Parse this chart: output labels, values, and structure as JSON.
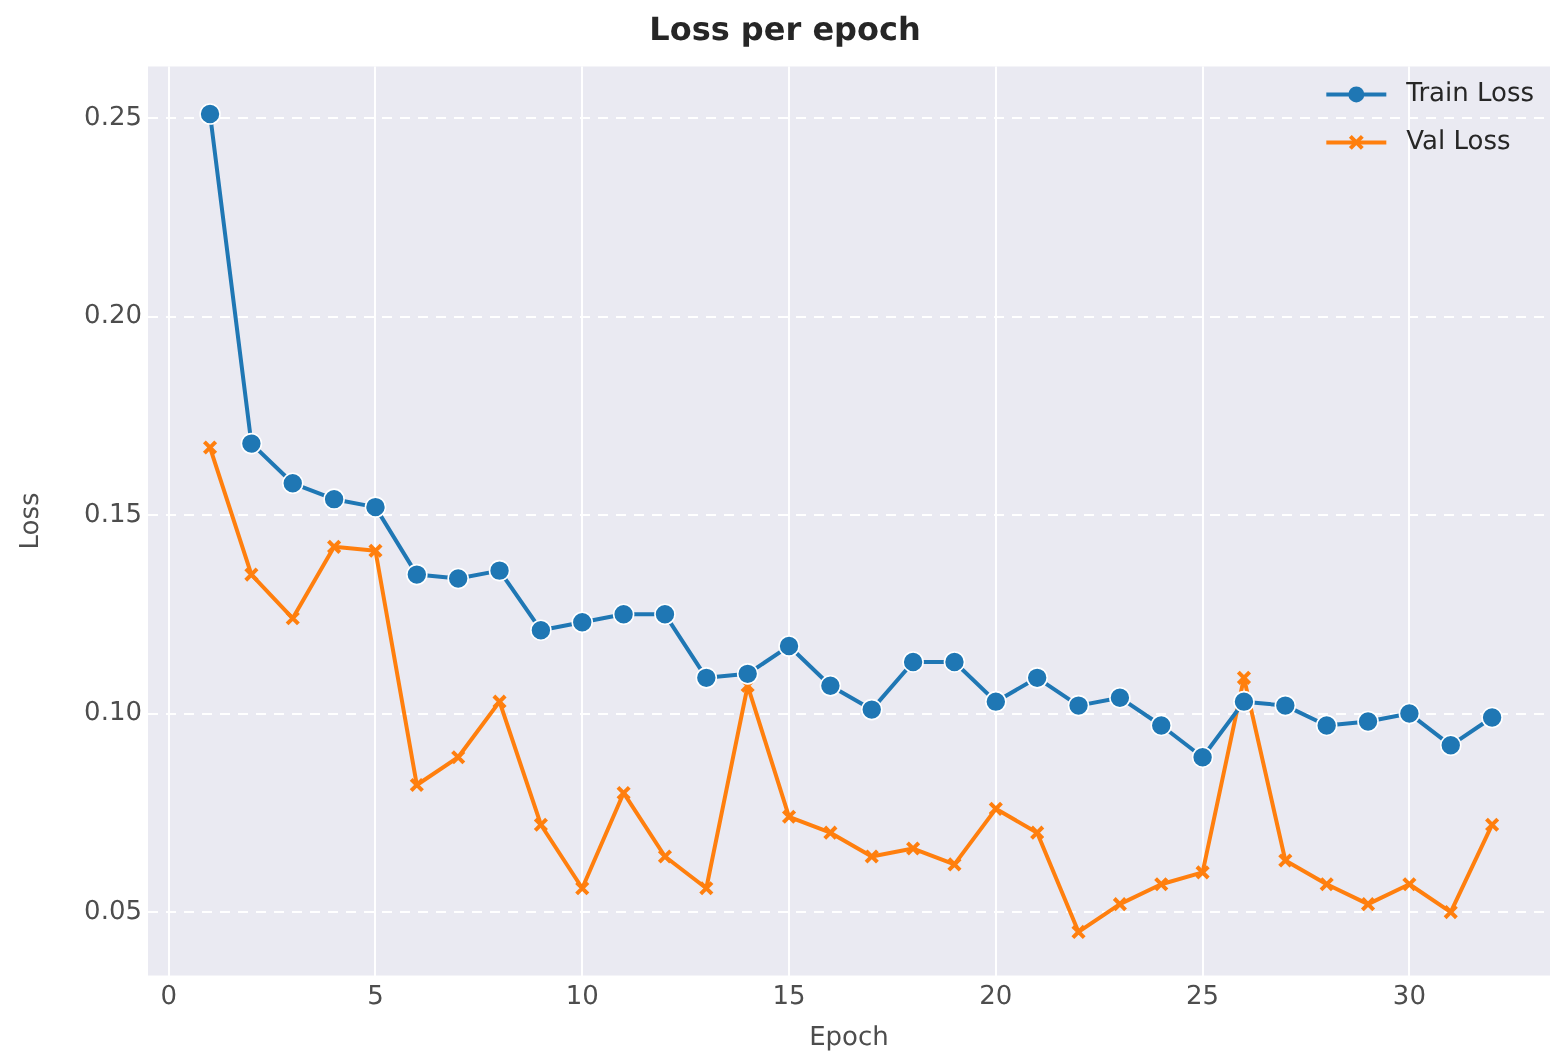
{
  "chart_data": {
    "type": "line",
    "title": "Loss per epoch",
    "xlabel": "Epoch",
    "ylabel": "Loss",
    "x": [
      1,
      2,
      3,
      4,
      5,
      6,
      7,
      8,
      9,
      10,
      11,
      12,
      13,
      14,
      15,
      16,
      17,
      18,
      19,
      20,
      21,
      22,
      23,
      24,
      25,
      26,
      27,
      28,
      29,
      30,
      31,
      32
    ],
    "series": [
      {
        "name": "Train Loss",
        "color": "#1f77b4",
        "marker": "circle",
        "values": [
          0.251,
          0.168,
          0.158,
          0.154,
          0.152,
          0.135,
          0.134,
          0.136,
          0.121,
          0.123,
          0.125,
          0.125,
          0.109,
          0.11,
          0.117,
          0.107,
          0.101,
          0.113,
          0.113,
          0.103,
          0.109,
          0.102,
          0.104,
          0.097,
          0.089,
          0.103,
          0.102,
          0.097,
          0.098,
          0.1,
          0.092,
          0.099
        ]
      },
      {
        "name": "Val Loss",
        "color": "#ff7f0e",
        "marker": "cross",
        "values": [
          0.167,
          0.135,
          0.124,
          0.142,
          0.141,
          0.082,
          0.089,
          0.103,
          0.072,
          0.056,
          0.08,
          0.064,
          0.056,
          0.107,
          0.074,
          0.07,
          0.064,
          0.066,
          0.062,
          0.076,
          0.07,
          0.045,
          0.052,
          0.057,
          0.06,
          0.109,
          0.063,
          0.057,
          0.052,
          0.057,
          0.05,
          0.072
        ]
      }
    ],
    "xlim": [
      -0.5,
      33.4
    ],
    "xticks": [
      0,
      5,
      10,
      15,
      20,
      25,
      30
    ],
    "ylim": [
      0.034,
      0.263
    ],
    "yticks": [
      {
        "value": 0.05,
        "label": "0.05"
      },
      {
        "value": 0.1,
        "label": "0.10"
      },
      {
        "value": 0.15,
        "label": "0.15"
      },
      {
        "value": 0.2,
        "label": "0.20"
      },
      {
        "value": 0.25,
        "label": "0.25"
      }
    ],
    "grid": true,
    "legend": "top right",
    "line_style": "solid"
  }
}
